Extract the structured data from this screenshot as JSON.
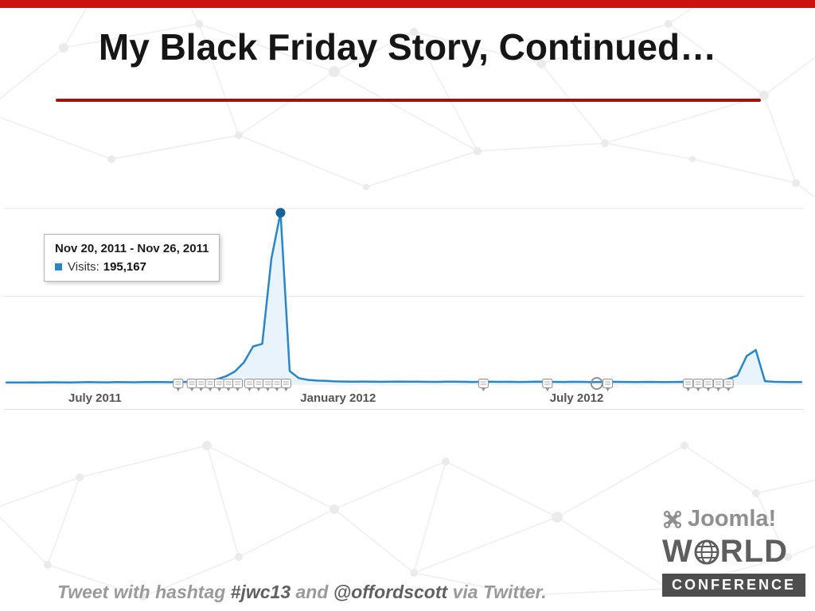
{
  "slide": {
    "title": "My Black Friday Story, Continued…",
    "footer": {
      "text_before": "Tweet with hashtag ",
      "hashtag": "#jwc13",
      "text_middle": " and ",
      "handle": "@offordscott",
      "text_after": " via Twitter."
    },
    "logo": {
      "brand": "Joomla!",
      "world_left": "W",
      "world_right": "RLD",
      "banner": "CONFERENCE"
    },
    "accent_colors": {
      "top_bar": "#cc1111",
      "title_underline": "#9e1408"
    }
  },
  "chart_data": {
    "type": "area",
    "title": "",
    "xlabel": "",
    "ylabel": "Visits",
    "ylim": [
      0,
      200000
    ],
    "y_gridlines": [
      0,
      100000,
      200000
    ],
    "grid": true,
    "legend_position": "tooltip",
    "last_week_index": 87,
    "x_ticks": [
      {
        "label": "July 2011",
        "week": 9.7
      },
      {
        "label": "January 2012",
        "week": 36.3
      },
      {
        "label": "July 2012",
        "week": 62.4
      }
    ],
    "series": [
      {
        "name": "Visits",
        "color": "#2a86c4",
        "fill": "#e8f3fb",
        "points": [
          2000,
          2100,
          1950,
          2200,
          2050,
          2300,
          2150,
          2050,
          2250,
          2400,
          2300,
          2150,
          2500,
          2350,
          2250,
          2450,
          2600,
          2500,
          2350,
          2650,
          2800,
          3200,
          4100,
          5600,
          9000,
          14500,
          25000,
          43000,
          46000,
          143000,
          195167,
          15000,
          7000,
          5000,
          4200,
          3800,
          3300,
          3100,
          2950,
          3100,
          3000,
          2850,
          3000,
          3100,
          2900,
          3000,
          2800,
          2700,
          2900,
          3000,
          2800,
          2650,
          2800,
          2900,
          2700,
          2800,
          2600,
          2700,
          2900,
          2800,
          2700,
          2600,
          2800,
          2700,
          2500,
          2600,
          2800,
          2700,
          2600,
          2500,
          2700,
          2600,
          2500,
          2600,
          2700,
          2500,
          2450,
          2600,
          2500,
          6000,
          10000,
          32000,
          39000,
          3500,
          2800,
          2600,
          2500,
          2400
        ]
      }
    ],
    "highlight": {
      "week": 30,
      "dot_color": "#16639c",
      "tooltip": {
        "date_range": "Nov 20, 2011 - Nov 26, 2011",
        "series_label": "Visits:",
        "value": "195,167"
      }
    },
    "annotations": [
      {
        "week": 18.8,
        "type": "bubble"
      },
      {
        "week": 20.3,
        "type": "bubble"
      },
      {
        "week": 21.3,
        "type": "bubble"
      },
      {
        "week": 22.3,
        "type": "bubble"
      },
      {
        "week": 23.3,
        "type": "bubble"
      },
      {
        "week": 24.3,
        "type": "bubble"
      },
      {
        "week": 25.3,
        "type": "bubble"
      },
      {
        "week": 26.6,
        "type": "bubble"
      },
      {
        "week": 27.6,
        "type": "bubble"
      },
      {
        "week": 28.6,
        "type": "bubble"
      },
      {
        "week": 29.6,
        "type": "bubble"
      },
      {
        "week": 30.6,
        "type": "bubble"
      },
      {
        "week": 52.2,
        "type": "bubble"
      },
      {
        "week": 59.2,
        "type": "bubble"
      },
      {
        "week": 64.6,
        "type": "circle"
      },
      {
        "week": 65.8,
        "type": "bubble"
      },
      {
        "week": 74.6,
        "type": "bubble"
      },
      {
        "week": 75.7,
        "type": "bubble"
      },
      {
        "week": 76.8,
        "type": "bubble"
      },
      {
        "week": 77.9,
        "type": "bubble"
      },
      {
        "week": 79.0,
        "type": "bubble"
      }
    ]
  }
}
